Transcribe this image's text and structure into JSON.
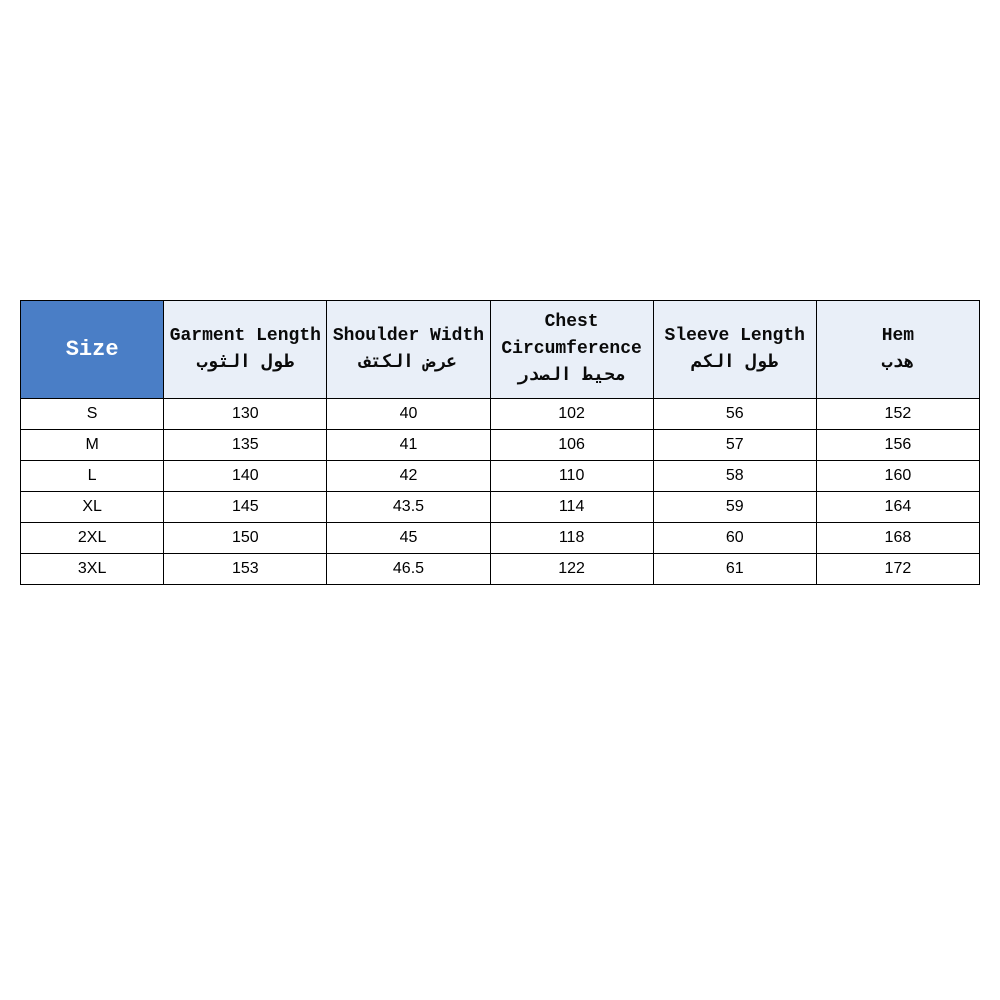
{
  "table": {
    "type": "table",
    "header_bg_size": "#4a7ec6",
    "header_fg_size": "#ffffff",
    "header_bg_meas": "#e9eff8",
    "header_fg_meas": "#0a0a0a",
    "border_color": "#000000",
    "row_bg": "#ffffff",
    "header_font_family": "Courier New",
    "body_font_family": "Arial",
    "size_header_fontsize": 22,
    "meas_header_fontsize": 18,
    "body_fontsize": 16,
    "columns": [
      {
        "en": "Size",
        "ar": ""
      },
      {
        "en": "Garment Length",
        "ar": "طول الثوب"
      },
      {
        "en": "Shoulder Width",
        "ar": "عرض الكتف"
      },
      {
        "en": "Chest Circumference",
        "ar": "محيط الصدر"
      },
      {
        "en": "Sleeve Length",
        "ar": "طول الكم"
      },
      {
        "en": "Hem",
        "ar": "هدب"
      }
    ],
    "rows": [
      [
        "S",
        "130",
        "40",
        "102",
        "56",
        "152"
      ],
      [
        "M",
        "135",
        "41",
        "106",
        "57",
        "156"
      ],
      [
        "L",
        "140",
        "42",
        "110",
        "58",
        "160"
      ],
      [
        "XL",
        "145",
        "43.5",
        "114",
        "59",
        "164"
      ],
      [
        "2XL",
        "150",
        "45",
        "118",
        "60",
        "168"
      ],
      [
        "3XL",
        "153",
        "46.5",
        "122",
        "61",
        "172"
      ]
    ]
  }
}
